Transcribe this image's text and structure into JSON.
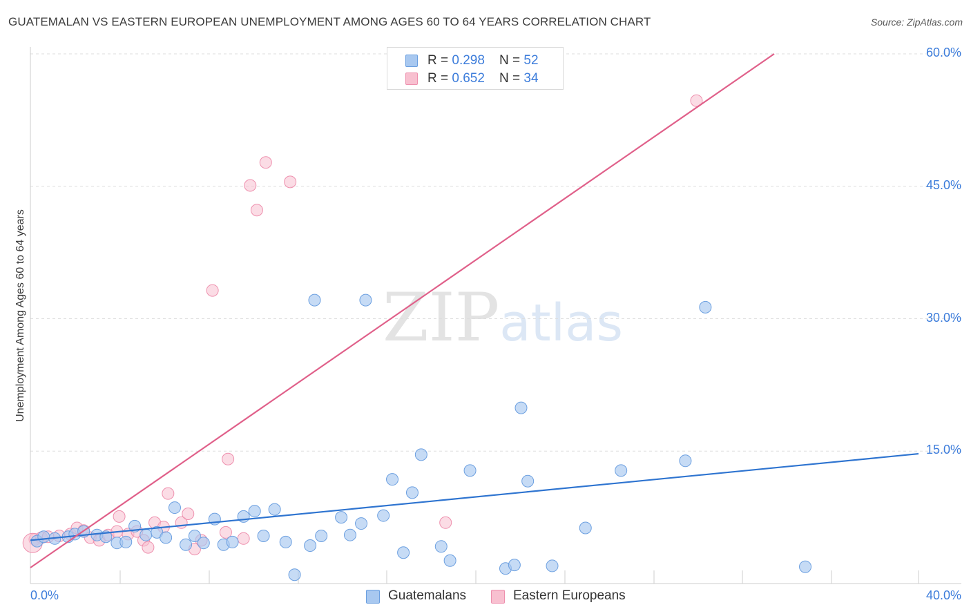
{
  "title": "GUATEMALAN VS EASTERN EUROPEAN UNEMPLOYMENT AMONG AGES 60 TO 64 YEARS CORRELATION CHART",
  "source": "Source: ZipAtlas.com",
  "watermark": {
    "zip": "ZIP",
    "atlas": "atlas"
  },
  "legend": {
    "rows": [
      {
        "r_label": "R = ",
        "r_value": "0.298",
        "n_label": "N = ",
        "n_value": "52"
      },
      {
        "r_label": "R = ",
        "r_value": "0.652",
        "n_label": "N = ",
        "n_value": "34"
      }
    ]
  },
  "colors": {
    "blue_fill": "#a8c8f0",
    "blue_stroke": "#6b9fe0",
    "blue_line": "#2e74d0",
    "pink_fill": "#f8c0d0",
    "pink_stroke": "#ee90ae",
    "pink_line": "#e0608a",
    "grid": "#dddddd",
    "tick_text": "#3d7ddb"
  },
  "chart_data": {
    "type": "scatter",
    "title": "GUATEMALAN VS EASTERN EUROPEAN UNEMPLOYMENT AMONG AGES 60 TO 64 YEARS CORRELATION CHART",
    "xlabel": "",
    "ylabel": "Unemployment Among Ages 60 to 64 years",
    "xlim": [
      0,
      40
    ],
    "ylim": [
      0,
      60
    ],
    "x_tick_labels": [
      "0.0%",
      "40.0%"
    ],
    "y_ticks": [
      15,
      30,
      45,
      60
    ],
    "y_tick_labels": [
      "15.0%",
      "30.0%",
      "45.0%",
      "60.0%"
    ],
    "grid": true,
    "series": [
      {
        "name": "Guatemalans",
        "r": 0.298,
        "n": 52,
        "points": [
          [
            0.3,
            4.8
          ],
          [
            0.6,
            5.3
          ],
          [
            1.1,
            5.1
          ],
          [
            1.7,
            5.3
          ],
          [
            2.0,
            5.6
          ],
          [
            2.4,
            5.9
          ],
          [
            3.0,
            5.5
          ],
          [
            3.4,
            5.3
          ],
          [
            3.9,
            4.6
          ],
          [
            4.3,
            4.7
          ],
          [
            4.7,
            6.5
          ],
          [
            5.2,
            5.5
          ],
          [
            5.7,
            5.8
          ],
          [
            6.1,
            5.2
          ],
          [
            6.5,
            8.6
          ],
          [
            7.0,
            4.4
          ],
          [
            7.4,
            5.4
          ],
          [
            7.8,
            4.6
          ],
          [
            8.3,
            7.3
          ],
          [
            8.7,
            4.4
          ],
          [
            9.1,
            4.7
          ],
          [
            9.6,
            7.6
          ],
          [
            10.1,
            8.2
          ],
          [
            10.5,
            5.4
          ],
          [
            11.0,
            8.4
          ],
          [
            11.5,
            4.7
          ],
          [
            11.9,
            1.0
          ],
          [
            12.6,
            4.3
          ],
          [
            13.1,
            5.4
          ],
          [
            12.8,
            32.1
          ],
          [
            14.0,
            7.5
          ],
          [
            14.4,
            5.5
          ],
          [
            14.9,
            6.8
          ],
          [
            15.1,
            32.1
          ],
          [
            15.9,
            7.7
          ],
          [
            16.3,
            11.8
          ],
          [
            16.8,
            3.5
          ],
          [
            17.2,
            10.3
          ],
          [
            17.6,
            14.6
          ],
          [
            18.5,
            4.2
          ],
          [
            18.9,
            2.6
          ],
          [
            19.8,
            12.8
          ],
          [
            21.4,
            1.7
          ],
          [
            21.8,
            2.1
          ],
          [
            22.1,
            19.9
          ],
          [
            22.4,
            11.6
          ],
          [
            23.5,
            2.0
          ],
          [
            25.0,
            6.3
          ],
          [
            26.6,
            12.8
          ],
          [
            29.5,
            13.9
          ],
          [
            30.4,
            31.3
          ],
          [
            34.9,
            1.9
          ]
        ]
      },
      {
        "name": "Eastern Europeans",
        "r": 0.652,
        "n": 34,
        "points": [
          [
            0.2,
            5.0
          ],
          [
            0.5,
            5.2
          ],
          [
            0.8,
            5.3
          ],
          [
            1.3,
            5.4
          ],
          [
            1.8,
            5.6
          ],
          [
            2.1,
            6.3
          ],
          [
            2.4,
            6.0
          ],
          [
            2.7,
            5.2
          ],
          [
            3.1,
            4.9
          ],
          [
            3.5,
            5.5
          ],
          [
            3.9,
            5.9
          ],
          [
            4.0,
            7.6
          ],
          [
            4.4,
            5.6
          ],
          [
            4.8,
            5.9
          ],
          [
            5.1,
            4.9
          ],
          [
            5.3,
            4.1
          ],
          [
            5.6,
            6.9
          ],
          [
            6.0,
            6.4
          ],
          [
            6.2,
            10.2
          ],
          [
            6.8,
            6.9
          ],
          [
            7.1,
            7.9
          ],
          [
            7.4,
            3.9
          ],
          [
            7.7,
            4.9
          ],
          [
            8.2,
            33.2
          ],
          [
            8.8,
            5.8
          ],
          [
            8.9,
            14.1
          ],
          [
            9.6,
            5.1
          ],
          [
            9.9,
            45.1
          ],
          [
            10.2,
            42.3
          ],
          [
            10.6,
            47.7
          ],
          [
            11.7,
            45.5
          ],
          [
            18.7,
            6.9
          ],
          [
            30.0,
            54.7
          ],
          [
            0.1,
            4.6
          ]
        ]
      }
    ],
    "trendlines": [
      {
        "series": "Guatemalans",
        "x": [
          0,
          40
        ],
        "y": [
          4.9,
          14.7
        ]
      },
      {
        "series": "Eastern Europeans",
        "x": [
          0,
          33.5
        ],
        "y": [
          1.8,
          60.0
        ]
      }
    ]
  },
  "bottom_legend": [
    {
      "label": "Guatemalans"
    },
    {
      "label": "Eastern Europeans"
    }
  ]
}
